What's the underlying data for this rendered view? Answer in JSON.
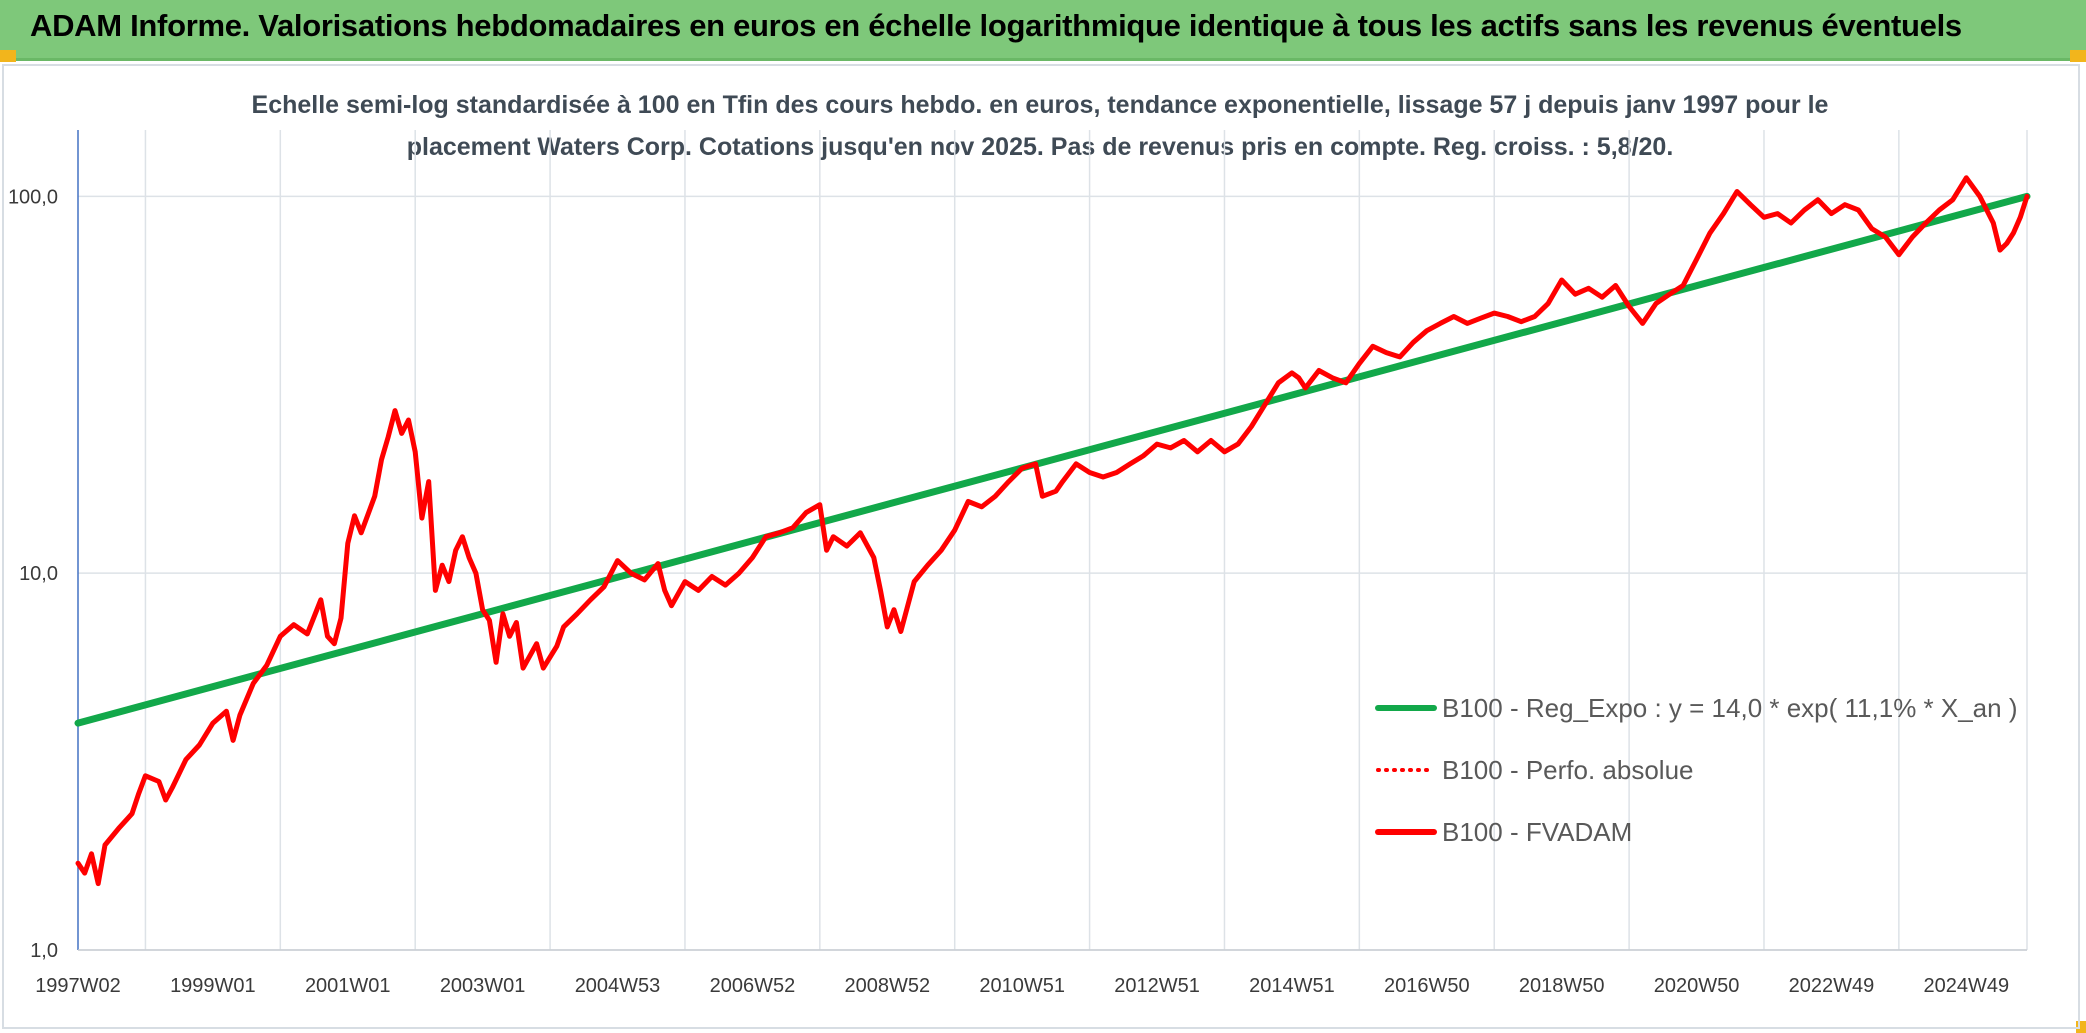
{
  "header": {
    "title": "ADAM Informe. Valorisations hebdomadaires en euros en échelle logarithmique identique à tous les actifs sans les revenus éventuels"
  },
  "chart_data": {
    "type": "line",
    "title_lines": [
      "Echelle semi-log standardisée à 100 en Tfin des cours hebdo. en euros, tendance exponentielle, lissage 57 j depuis janv 1997 pour le",
      "placement Waters Corp. Cotations jusqu'en nov 2025. Pas de revenus pris en compte. Reg. croiss. : 5,8/20."
    ],
    "y_scale": "log",
    "ylim": [
      1,
      150
    ],
    "xlim": [
      1997.0,
      2025.9
    ],
    "y_ticks": [
      {
        "value": 1,
        "label": "1,0"
      },
      {
        "value": 10,
        "label": "10,0"
      },
      {
        "value": 100,
        "label": "100,0"
      }
    ],
    "x_ticks": [
      {
        "value": 1997.0,
        "label": "1997W02"
      },
      {
        "value": 1999.0,
        "label": "1999W01"
      },
      {
        "value": 2001.0,
        "label": "2001W01"
      },
      {
        "value": 2003.0,
        "label": "2003W01"
      },
      {
        "value": 2005.0,
        "label": "2004W53"
      },
      {
        "value": 2007.0,
        "label": "2006W52"
      },
      {
        "value": 2009.0,
        "label": "2008W52"
      },
      {
        "value": 2011.0,
        "label": "2010W51"
      },
      {
        "value": 2013.0,
        "label": "2012W51"
      },
      {
        "value": 2015.0,
        "label": "2014W51"
      },
      {
        "value": 2017.0,
        "label": "2016W50"
      },
      {
        "value": 2019.0,
        "label": "2018W50"
      },
      {
        "value": 2021.0,
        "label": "2020W50"
      },
      {
        "value": 2023.0,
        "label": "2022W49"
      },
      {
        "value": 2025.0,
        "label": "2024W49"
      }
    ],
    "grid": true,
    "legend_position": "bottom-right",
    "series": [
      {
        "name": "B100 - Reg_Expo : y = 14,0 * exp( 11,1% *  X_an )",
        "color": "#12a84a",
        "style": "solid",
        "points": [
          [
            1997.0,
            4.0
          ],
          [
            2025.9,
            100.0
          ]
        ]
      },
      {
        "name": "B100 - Perfo. absolue",
        "color": "#ff0000",
        "style": "dotted",
        "points": []
      },
      {
        "name": "B100 - FVADAM",
        "color": "#ff0000",
        "style": "solid",
        "points": [
          [
            1997.0,
            1.7
          ],
          [
            1997.1,
            1.6
          ],
          [
            1997.2,
            1.8
          ],
          [
            1997.3,
            1.5
          ],
          [
            1997.4,
            1.9
          ],
          [
            1997.6,
            2.1
          ],
          [
            1997.8,
            2.3
          ],
          [
            1997.9,
            2.6
          ],
          [
            1998.0,
            2.9
          ],
          [
            1998.2,
            2.8
          ],
          [
            1998.3,
            2.5
          ],
          [
            1998.4,
            2.7
          ],
          [
            1998.6,
            3.2
          ],
          [
            1998.8,
            3.5
          ],
          [
            1999.0,
            4.0
          ],
          [
            1999.2,
            4.3
          ],
          [
            1999.3,
            3.6
          ],
          [
            1999.4,
            4.2
          ],
          [
            1999.6,
            5.1
          ],
          [
            1999.8,
            5.7
          ],
          [
            2000.0,
            6.8
          ],
          [
            2000.2,
            7.3
          ],
          [
            2000.4,
            6.9
          ],
          [
            2000.6,
            8.5
          ],
          [
            2000.7,
            6.8
          ],
          [
            2000.8,
            6.5
          ],
          [
            2000.9,
            7.6
          ],
          [
            2001.0,
            12.0
          ],
          [
            2001.1,
            14.2
          ],
          [
            2001.2,
            12.8
          ],
          [
            2001.4,
            16.0
          ],
          [
            2001.5,
            20.0
          ],
          [
            2001.6,
            23.0
          ],
          [
            2001.7,
            27.0
          ],
          [
            2001.8,
            23.5
          ],
          [
            2001.9,
            25.5
          ],
          [
            2002.0,
            21.0
          ],
          [
            2002.1,
            14.0
          ],
          [
            2002.2,
            17.5
          ],
          [
            2002.3,
            9.0
          ],
          [
            2002.4,
            10.5
          ],
          [
            2002.5,
            9.5
          ],
          [
            2002.6,
            11.5
          ],
          [
            2002.7,
            12.5
          ],
          [
            2002.8,
            11.0
          ],
          [
            2002.9,
            10.0
          ],
          [
            2003.0,
            8.0
          ],
          [
            2003.1,
            7.5
          ],
          [
            2003.2,
            5.8
          ],
          [
            2003.3,
            7.8
          ],
          [
            2003.4,
            6.8
          ],
          [
            2003.5,
            7.4
          ],
          [
            2003.6,
            5.6
          ],
          [
            2003.8,
            6.5
          ],
          [
            2003.9,
            5.6
          ],
          [
            2004.1,
            6.4
          ],
          [
            2004.2,
            7.2
          ],
          [
            2004.4,
            7.8
          ],
          [
            2004.6,
            8.5
          ],
          [
            2004.8,
            9.2
          ],
          [
            2005.0,
            10.8
          ],
          [
            2005.2,
            10.0
          ],
          [
            2005.4,
            9.6
          ],
          [
            2005.6,
            10.6
          ],
          [
            2005.7,
            9.0
          ],
          [
            2005.8,
            8.2
          ],
          [
            2006.0,
            9.5
          ],
          [
            2006.2,
            9.0
          ],
          [
            2006.4,
            9.8
          ],
          [
            2006.6,
            9.3
          ],
          [
            2006.8,
            10.0
          ],
          [
            2007.0,
            11.0
          ],
          [
            2007.2,
            12.5
          ],
          [
            2007.4,
            12.8
          ],
          [
            2007.6,
            13.2
          ],
          [
            2007.8,
            14.5
          ],
          [
            2008.0,
            15.2
          ],
          [
            2008.1,
            11.5
          ],
          [
            2008.2,
            12.5
          ],
          [
            2008.4,
            11.8
          ],
          [
            2008.6,
            12.8
          ],
          [
            2008.8,
            11.0
          ],
          [
            2008.9,
            9.0
          ],
          [
            2009.0,
            7.2
          ],
          [
            2009.1,
            8.0
          ],
          [
            2009.2,
            7.0
          ],
          [
            2009.4,
            9.5
          ],
          [
            2009.6,
            10.5
          ],
          [
            2009.8,
            11.5
          ],
          [
            2010.0,
            13.0
          ],
          [
            2010.2,
            15.5
          ],
          [
            2010.4,
            15.0
          ],
          [
            2010.6,
            16.0
          ],
          [
            2010.8,
            17.5
          ],
          [
            2011.0,
            19.0
          ],
          [
            2011.2,
            19.5
          ],
          [
            2011.3,
            16.0
          ],
          [
            2011.5,
            16.5
          ],
          [
            2011.6,
            17.5
          ],
          [
            2011.8,
            19.5
          ],
          [
            2012.0,
            18.5
          ],
          [
            2012.2,
            18.0
          ],
          [
            2012.4,
            18.5
          ],
          [
            2012.6,
            19.5
          ],
          [
            2012.8,
            20.5
          ],
          [
            2013.0,
            22.0
          ],
          [
            2013.2,
            21.5
          ],
          [
            2013.4,
            22.5
          ],
          [
            2013.6,
            21.0
          ],
          [
            2013.8,
            22.5
          ],
          [
            2014.0,
            21.0
          ],
          [
            2014.2,
            22.0
          ],
          [
            2014.4,
            24.5
          ],
          [
            2014.6,
            28.0
          ],
          [
            2014.8,
            32.0
          ],
          [
            2015.0,
            34.0
          ],
          [
            2015.1,
            33.0
          ],
          [
            2015.2,
            31.0
          ],
          [
            2015.4,
            34.5
          ],
          [
            2015.6,
            33.0
          ],
          [
            2015.8,
            32.0
          ],
          [
            2016.0,
            36.0
          ],
          [
            2016.2,
            40.0
          ],
          [
            2016.4,
            38.5
          ],
          [
            2016.6,
            37.5
          ],
          [
            2016.8,
            41.0
          ],
          [
            2017.0,
            44.0
          ],
          [
            2017.2,
            46.0
          ],
          [
            2017.4,
            48.0
          ],
          [
            2017.6,
            46.0
          ],
          [
            2017.8,
            47.5
          ],
          [
            2018.0,
            49.0
          ],
          [
            2018.2,
            48.0
          ],
          [
            2018.4,
            46.5
          ],
          [
            2018.6,
            48.0
          ],
          [
            2018.8,
            52.0
          ],
          [
            2019.0,
            60.0
          ],
          [
            2019.2,
            55.0
          ],
          [
            2019.4,
            57.0
          ],
          [
            2019.6,
            54.0
          ],
          [
            2019.8,
            58.0
          ],
          [
            2020.0,
            51.0
          ],
          [
            2020.2,
            46.0
          ],
          [
            2020.4,
            52.0
          ],
          [
            2020.6,
            55.0
          ],
          [
            2020.8,
            58.0
          ],
          [
            2021.0,
            68.0
          ],
          [
            2021.2,
            80.0
          ],
          [
            2021.4,
            90.0
          ],
          [
            2021.6,
            103.0
          ],
          [
            2021.8,
            95.0
          ],
          [
            2022.0,
            88.0
          ],
          [
            2022.2,
            90.0
          ],
          [
            2022.4,
            85.0
          ],
          [
            2022.6,
            92.0
          ],
          [
            2022.8,
            98.0
          ],
          [
            2023.0,
            90.0
          ],
          [
            2023.2,
            95.0
          ],
          [
            2023.4,
            92.0
          ],
          [
            2023.6,
            82.0
          ],
          [
            2023.8,
            78.0
          ],
          [
            2024.0,
            70.0
          ],
          [
            2024.2,
            78.0
          ],
          [
            2024.4,
            85.0
          ],
          [
            2024.6,
            92.0
          ],
          [
            2024.8,
            98.0
          ],
          [
            2025.0,
            112.0
          ],
          [
            2025.2,
            100.0
          ],
          [
            2025.4,
            85.0
          ],
          [
            2025.5,
            72.0
          ],
          [
            2025.6,
            75.0
          ],
          [
            2025.7,
            80.0
          ],
          [
            2025.8,
            88.0
          ],
          [
            2025.9,
            100.0
          ]
        ]
      }
    ]
  }
}
